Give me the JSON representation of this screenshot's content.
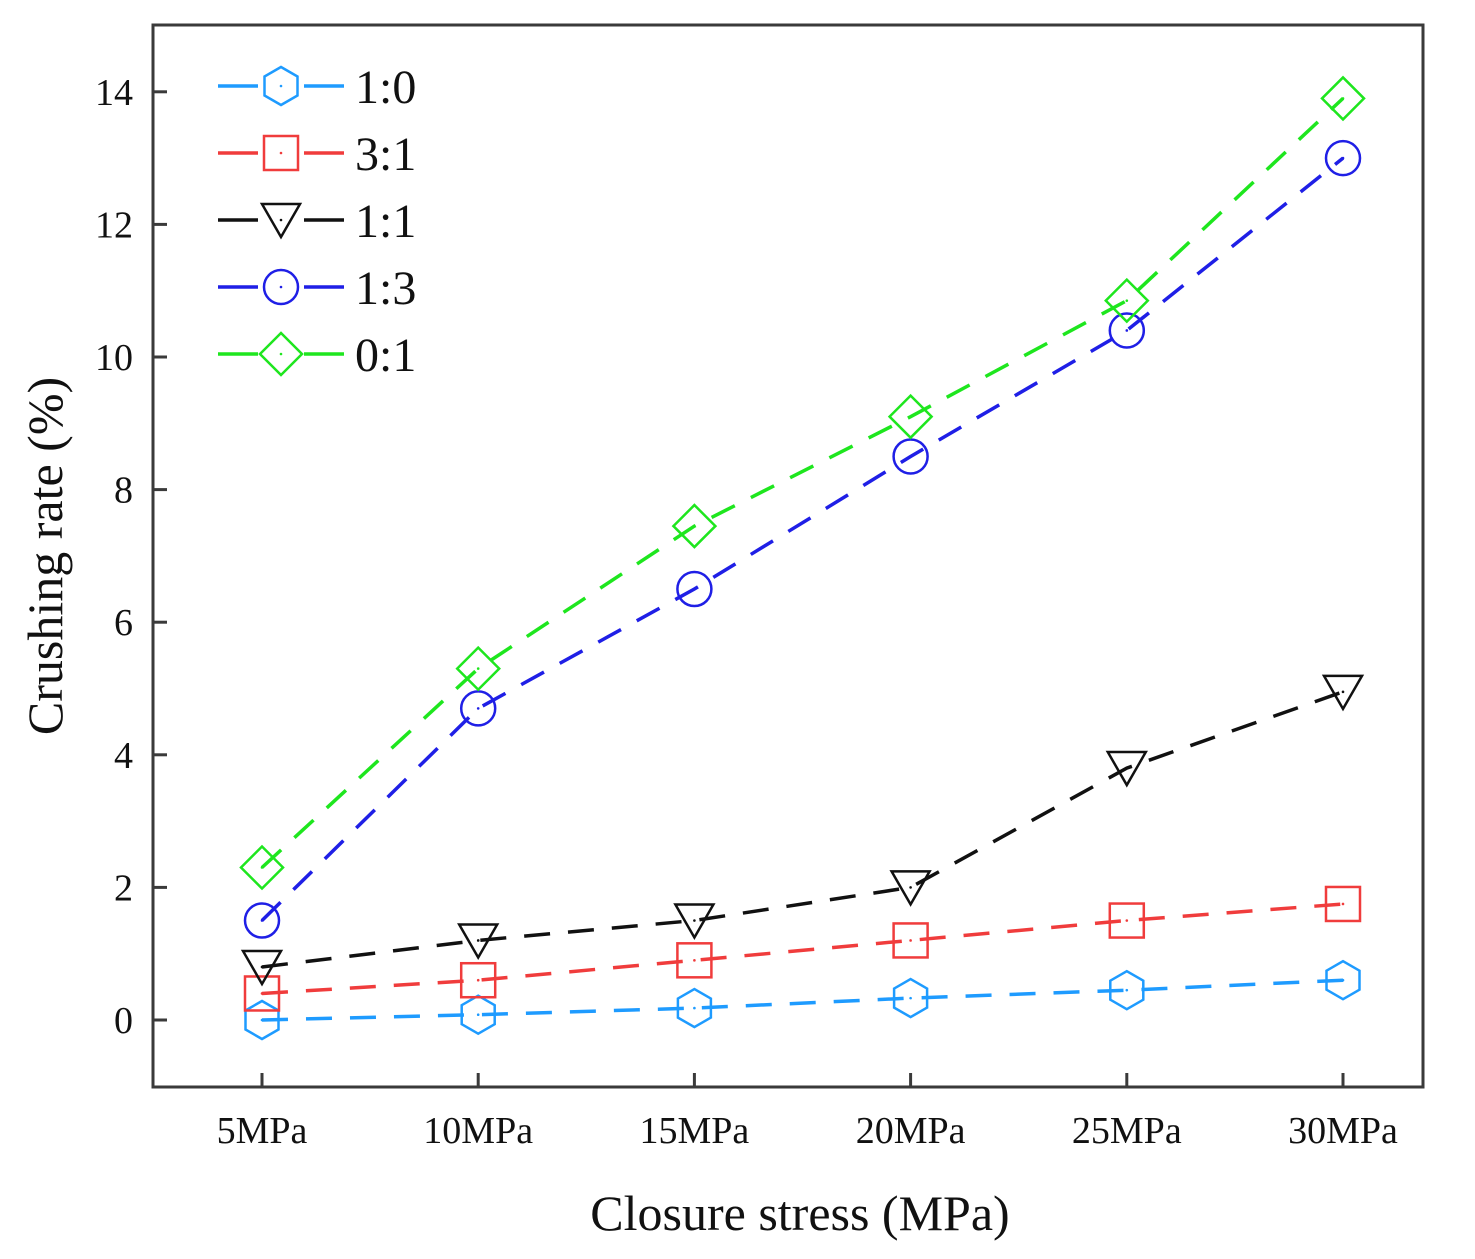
{
  "chart_data": {
    "type": "line",
    "title": "",
    "xlabel": "Closure stress (MPa)",
    "ylabel": "Crushing rate (%)",
    "categories": [
      "5MPa",
      "10MPa",
      "15MPa",
      "20MPa",
      "25MPa",
      "30MPa"
    ],
    "ylim": [
      -1,
      15
    ],
    "yticks": [
      0,
      2,
      4,
      6,
      8,
      10,
      12,
      14
    ],
    "grid": false,
    "legend_position": "top-left",
    "series": [
      {
        "name": "1:0",
        "color": "#1e9bff",
        "marker": "hexagon",
        "values": [
          0.0,
          0.08,
          0.18,
          0.33,
          0.45,
          0.6
        ]
      },
      {
        "name": "3:1",
        "color": "#f03c3c",
        "marker": "square",
        "values": [
          0.4,
          0.6,
          0.9,
          1.2,
          1.5,
          1.75
        ]
      },
      {
        "name": "1:1",
        "color": "#111111",
        "marker": "triangle-down",
        "values": [
          0.8,
          1.2,
          1.5,
          2.0,
          3.8,
          4.95
        ]
      },
      {
        "name": "1:3",
        "color": "#1f1fe6",
        "marker": "circle",
        "values": [
          1.5,
          4.7,
          6.5,
          8.5,
          10.4,
          13.0
        ]
      },
      {
        "name": "0:1",
        "color": "#1ee61e",
        "marker": "diamond",
        "values": [
          2.3,
          5.3,
          7.45,
          9.1,
          10.85,
          13.9
        ]
      }
    ]
  }
}
